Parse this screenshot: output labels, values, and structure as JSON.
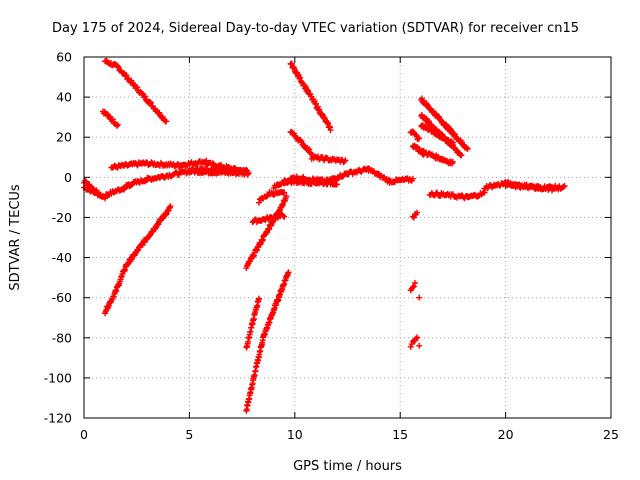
{
  "chart_data": {
    "type": "scatter",
    "title": "Day 175 of 2024, Sidereal Day-to-day VTEC variation (SDTVAR) for receiver cn15",
    "xlabel": "GPS time / hours",
    "ylabel": "SDTVAR / TECUs",
    "xlim": [
      0,
      25
    ],
    "ylim": [
      -120,
      60
    ],
    "xticks": [
      0,
      5,
      10,
      15,
      20,
      25
    ],
    "yticks": [
      -120,
      -100,
      -80,
      -60,
      -40,
      -20,
      0,
      20,
      40,
      60
    ],
    "grid": true,
    "marker": "plus",
    "color": "#ff0000",
    "segments": [
      {
        "x0": 0.0,
        "x1": 1.0,
        "y0": -5,
        "y1": -10,
        "step": 0.05
      },
      {
        "x0": 0.0,
        "x1": 0.8,
        "y0": -2,
        "y1": -9,
        "step": 0.05
      },
      {
        "x0": 1.0,
        "x1": 2.2,
        "y0": -9,
        "y1": -4,
        "step": 0.05
      },
      {
        "x0": 1.0,
        "x1": 1.6,
        "y0": 58,
        "y1": 55,
        "step": 0.04
      },
      {
        "x0": 1.6,
        "x1": 3.9,
        "y0": 55,
        "y1": 28,
        "step": 0.04
      },
      {
        "x0": 0.9,
        "x1": 1.6,
        "y0": 33,
        "y1": 26,
        "step": 0.04
      },
      {
        "x0": 1.3,
        "x1": 2.8,
        "y0": 5,
        "y1": 7,
        "step": 0.05
      },
      {
        "x0": 2.8,
        "x1": 4.5,
        "y0": 7,
        "y1": 6,
        "step": 0.05
      },
      {
        "x0": 4.5,
        "x1": 5.8,
        "y0": 6,
        "y1": 8,
        "step": 0.05
      },
      {
        "x0": 5.8,
        "x1": 7.6,
        "y0": 7,
        "y1": 3,
        "step": 0.05
      },
      {
        "x0": 2.0,
        "x1": 3.0,
        "y0": -4,
        "y1": -1,
        "step": 0.05
      },
      {
        "x0": 3.0,
        "x1": 5.0,
        "y0": -1,
        "y1": 3,
        "step": 0.05
      },
      {
        "x0": 5.0,
        "x1": 7.8,
        "y0": 3,
        "y1": 2,
        "step": 0.05
      },
      {
        "x0": 5.0,
        "x1": 7.8,
        "y0": 4,
        "y1": 3,
        "step": 0.05
      },
      {
        "x0": 1.0,
        "x1": 1.5,
        "y0": -67,
        "y1": -57,
        "step": 0.03
      },
      {
        "x0": 1.5,
        "x1": 2.0,
        "y0": -57,
        "y1": -44,
        "step": 0.03
      },
      {
        "x0": 2.0,
        "x1": 3.0,
        "y0": -44,
        "y1": -30,
        "step": 0.03
      },
      {
        "x0": 3.0,
        "x1": 4.1,
        "y0": -30,
        "y1": -15,
        "step": 0.03
      },
      {
        "x0": 7.7,
        "x1": 9.6,
        "y0": -45,
        "y1": -10,
        "step": 0.03
      },
      {
        "x0": 7.7,
        "x1": 8.5,
        "y0": -116,
        "y1": -80,
        "step": 0.02
      },
      {
        "x0": 8.5,
        "x1": 9.7,
        "y0": -80,
        "y1": -47,
        "step": 0.02
      },
      {
        "x0": 7.7,
        "x1": 8.3,
        "y0": -85,
        "y1": -60,
        "step": 0.02
      },
      {
        "x0": 8.0,
        "x1": 9.5,
        "y0": -22,
        "y1": -19,
        "step": 0.05
      },
      {
        "x0": 8.3,
        "x1": 8.8,
        "y0": -12,
        "y1": -8,
        "step": 0.05
      },
      {
        "x0": 8.8,
        "x1": 9.5,
        "y0": -8,
        "y1": -8,
        "step": 0.05
      },
      {
        "x0": 9.8,
        "x1": 11.7,
        "y0": 57,
        "y1": 24,
        "step": 0.03
      },
      {
        "x0": 9.8,
        "x1": 10.8,
        "y0": 23,
        "y1": 12,
        "step": 0.04
      },
      {
        "x0": 10.8,
        "x1": 12.4,
        "y0": 10,
        "y1": 8,
        "step": 0.05
      },
      {
        "x0": 9.0,
        "x1": 10.0,
        "y0": -5,
        "y1": 0,
        "step": 0.05
      },
      {
        "x0": 10.0,
        "x1": 11.5,
        "y0": 0,
        "y1": -2,
        "step": 0.05
      },
      {
        "x0": 11.5,
        "x1": 12.5,
        "y0": -2,
        "y1": 2,
        "step": 0.05
      },
      {
        "x0": 12.5,
        "x1": 13.5,
        "y0": 2,
        "y1": 4,
        "step": 0.05
      },
      {
        "x0": 13.5,
        "x1": 14.5,
        "y0": 4,
        "y1": -2,
        "step": 0.05
      },
      {
        "x0": 14.5,
        "x1": 15.6,
        "y0": -2,
        "y1": -1,
        "step": 0.05
      },
      {
        "x0": 9.5,
        "x1": 12.0,
        "y0": -2,
        "y1": -3,
        "step": 0.05
      },
      {
        "x0": 15.5,
        "x1": 15.9,
        "y0": 23,
        "y1": 19,
        "step": 0.04
      },
      {
        "x0": 15.6,
        "x1": 16.1,
        "y0": 16,
        "y1": 12,
        "step": 0.04
      },
      {
        "x0": 16.0,
        "x1": 18.2,
        "y0": 39,
        "y1": 14,
        "step": 0.03
      },
      {
        "x0": 16.0,
        "x1": 17.9,
        "y0": 31,
        "y1": 11,
        "step": 0.03
      },
      {
        "x0": 16.0,
        "x1": 17.5,
        "y0": 26,
        "y1": 17,
        "step": 0.04
      },
      {
        "x0": 16.0,
        "x1": 17.5,
        "y0": 13,
        "y1": 7,
        "step": 0.04
      },
      {
        "x0": 16.4,
        "x1": 18.2,
        "y0": -8,
        "y1": -10,
        "step": 0.05
      },
      {
        "x0": 18.2,
        "x1": 19.0,
        "y0": -10,
        "y1": -8,
        "step": 0.05
      },
      {
        "x0": 19.0,
        "x1": 20.0,
        "y0": -5,
        "y1": -3,
        "step": 0.05
      },
      {
        "x0": 20.0,
        "x1": 21.5,
        "y0": -3,
        "y1": -5,
        "step": 0.05
      },
      {
        "x0": 21.5,
        "x1": 22.8,
        "y0": -5,
        "y1": -5,
        "step": 0.05
      },
      {
        "x0": 20.0,
        "x1": 22.5,
        "y0": -4,
        "y1": -6,
        "step": 0.06
      },
      {
        "x0": 15.6,
        "x1": 15.8,
        "y0": -20,
        "y1": -18,
        "step": 0.05
      },
      {
        "x0": 15.5,
        "x1": 15.7,
        "y0": -56,
        "y1": -53,
        "step": 0.05
      },
      {
        "x0": 15.5,
        "x1": 15.8,
        "y0": -84,
        "y1": -80,
        "step": 0.05
      }
    ],
    "points": [
      {
        "x": 15.9,
        "y": -60
      },
      {
        "x": 15.9,
        "y": -84
      }
    ]
  }
}
